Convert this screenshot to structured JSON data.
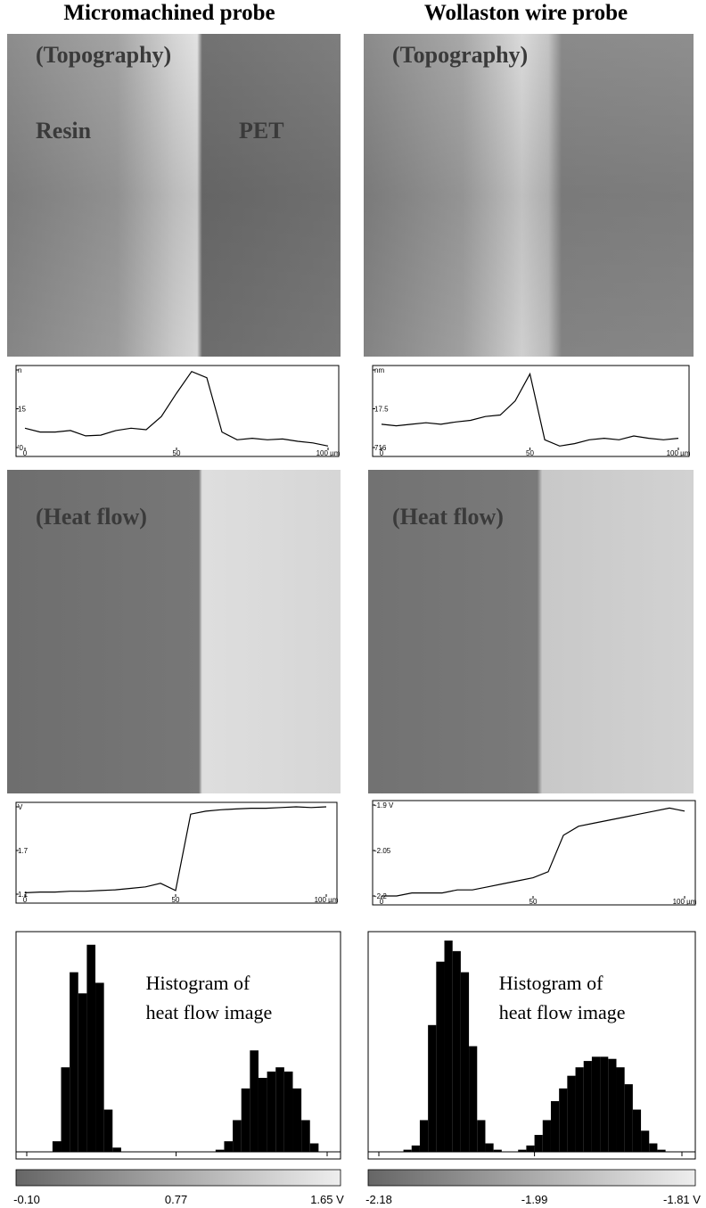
{
  "panels": [
    {
      "title": "Micromachined probe",
      "topography_label": "(Topography)",
      "resin_label": "Resin",
      "pet_label": "PET",
      "heat_label": "(Heat flow)"
    },
    {
      "title": "Wollaston wire probe",
      "topography_label": "(Topography)",
      "heat_label": "(Heat flow)"
    }
  ],
  "chart_data": [
    {
      "type": "line",
      "x": [
        0,
        5,
        10,
        15,
        20,
        25,
        30,
        35,
        40,
        45,
        50,
        55,
        60,
        65,
        70,
        75,
        80,
        85,
        90,
        95,
        100
      ],
      "values": [
        12.5,
        12,
        12,
        12.2,
        11.5,
        11.6,
        12.2,
        12.5,
        12.3,
        14,
        17,
        19.8,
        19,
        12,
        11,
        11.2,
        11,
        11.1,
        10.8,
        10.6,
        10.2
      ],
      "xlim": [
        0,
        100
      ],
      "xticks": [
        0,
        50,
        {
          "value": 100,
          "label": "100 µm"
        }
      ],
      "ylim": [
        10,
        20
      ],
      "yticks": [
        {
          "value": 20,
          "label": "n"
        },
        15,
        {
          "value": 10,
          "label": "'0"
        }
      ],
      "color": "#000000"
    },
    {
      "type": "line",
      "x": [
        0,
        5,
        10,
        15,
        20,
        25,
        30,
        35,
        40,
        45,
        50,
        55,
        60,
        65,
        70,
        75,
        80,
        85,
        90,
        95,
        100
      ],
      "values": [
        17.3,
        17.28,
        17.3,
        17.32,
        17.3,
        17.33,
        17.35,
        17.4,
        17.42,
        17.6,
        17.95,
        17.1,
        17.02,
        17.05,
        17.1,
        17.12,
        17.1,
        17.15,
        17.12,
        17.1,
        17.12
      ],
      "xlim": [
        0,
        100
      ],
      "xticks": [
        0,
        50,
        {
          "value": 100,
          "label": "100 µm"
        }
      ],
      "ylim": [
        17,
        18
      ],
      "yticks": [
        {
          "value": 18,
          "label": "nm"
        },
        17.5,
        {
          "value": 17,
          "label": "716"
        }
      ],
      "color": "#000000"
    },
    {
      "type": "line",
      "x": [
        0,
        5,
        10,
        15,
        20,
        25,
        30,
        35,
        40,
        45,
        50,
        55,
        60,
        65,
        70,
        75,
        80,
        85,
        90,
        95,
        100
      ],
      "values": [
        1.12,
        1.13,
        1.13,
        1.14,
        1.14,
        1.15,
        1.16,
        1.18,
        1.2,
        1.25,
        1.15,
        2.2,
        2.24,
        2.26,
        2.27,
        2.28,
        2.28,
        2.29,
        2.3,
        2.29,
        2.3
      ],
      "xlim": [
        0,
        100
      ],
      "xticks": [
        0,
        50,
        {
          "value": 100,
          "label": "100 µm"
        }
      ],
      "ylim": [
        1.1,
        2.3
      ],
      "yticks": [
        {
          "value": 2.3,
          "label": "V"
        },
        1.7,
        1.1
      ],
      "color": "#000000"
    },
    {
      "type": "line",
      "x": [
        0,
        5,
        10,
        15,
        20,
        25,
        30,
        35,
        40,
        45,
        50,
        55,
        60,
        65,
        70,
        75,
        80,
        85,
        90,
        95,
        100
      ],
      "values": [
        -2.2,
        -2.2,
        -2.19,
        -2.19,
        -2.19,
        -2.18,
        -2.18,
        -2.17,
        -2.16,
        -2.15,
        -2.14,
        -2.12,
        -2.0,
        -1.97,
        -1.96,
        -1.95,
        -1.94,
        -1.93,
        -1.92,
        -1.91,
        -1.92
      ],
      "xlim": [
        0,
        100
      ],
      "xticks": [
        0,
        50,
        {
          "value": 100,
          "label": "100 µm"
        }
      ],
      "ylim": [
        -2.2,
        -1.9
      ],
      "yticks": [
        {
          "value": -1.9,
          "label": "-1.9 V"
        },
        -2.05,
        -2.2
      ],
      "color": "#000000"
    },
    {
      "type": "histogram",
      "annotation": [
        "Histogram of",
        "heat flow image"
      ],
      "bins": [
        -0.1,
        -0.05,
        0.0,
        0.05,
        0.1,
        0.15,
        0.2,
        0.25,
        0.3,
        0.35,
        0.4,
        0.45,
        0.5,
        0.55,
        0.6,
        0.65,
        0.7,
        0.75,
        0.8,
        0.85,
        0.9,
        0.95,
        1.0,
        1.05,
        1.1,
        1.15,
        1.2,
        1.25,
        1.3,
        1.35,
        1.4,
        1.45,
        1.5,
        1.55,
        1.6,
        1.65
      ],
      "values": [
        0,
        0,
        0,
        5,
        40,
        85,
        75,
        98,
        80,
        20,
        2,
        0,
        0,
        0,
        0,
        0,
        0,
        0,
        0,
        0,
        0,
        0,
        1,
        5,
        15,
        30,
        48,
        35,
        38,
        40,
        38,
        30,
        15,
        4,
        0
      ],
      "xlim": [
        -0.1,
        1.65
      ],
      "xticks": [
        {
          "value": -0.1,
          "label": "-0.10"
        },
        0.77,
        {
          "value": 1.65,
          "label": "1.65 V"
        }
      ],
      "ylim": [
        0,
        100
      ],
      "color": "#000000"
    },
    {
      "type": "histogram",
      "annotation": [
        "Histogram of",
        "heat flow image"
      ],
      "bins": [
        -2.18,
        -2.17,
        -2.16,
        -2.15,
        -2.14,
        -2.13,
        -2.12,
        -2.11,
        -2.1,
        -2.09,
        -2.08,
        -2.07,
        -2.06,
        -2.05,
        -2.04,
        -2.03,
        -2.02,
        -2.01,
        -2.0,
        -1.99,
        -1.98,
        -1.97,
        -1.96,
        -1.95,
        -1.94,
        -1.93,
        -1.92,
        -1.91,
        -1.9,
        -1.89,
        -1.88,
        -1.87,
        -1.86,
        -1.85,
        -1.84,
        -1.83,
        -1.82,
        -1.81
      ],
      "values": [
        0,
        0,
        0,
        1,
        3,
        15,
        60,
        90,
        100,
        95,
        85,
        50,
        15,
        4,
        1,
        0,
        0,
        1,
        3,
        8,
        15,
        24,
        30,
        36,
        40,
        43,
        45,
        45,
        44,
        40,
        32,
        20,
        10,
        4,
        1,
        0,
        0
      ],
      "xlim": [
        -2.18,
        -1.81
      ],
      "xticks": [
        -2.18,
        -1.99,
        {
          "value": -1.81,
          "label": "-1.81 V"
        }
      ],
      "ylim": [
        0,
        100
      ],
      "color": "#000000"
    }
  ]
}
